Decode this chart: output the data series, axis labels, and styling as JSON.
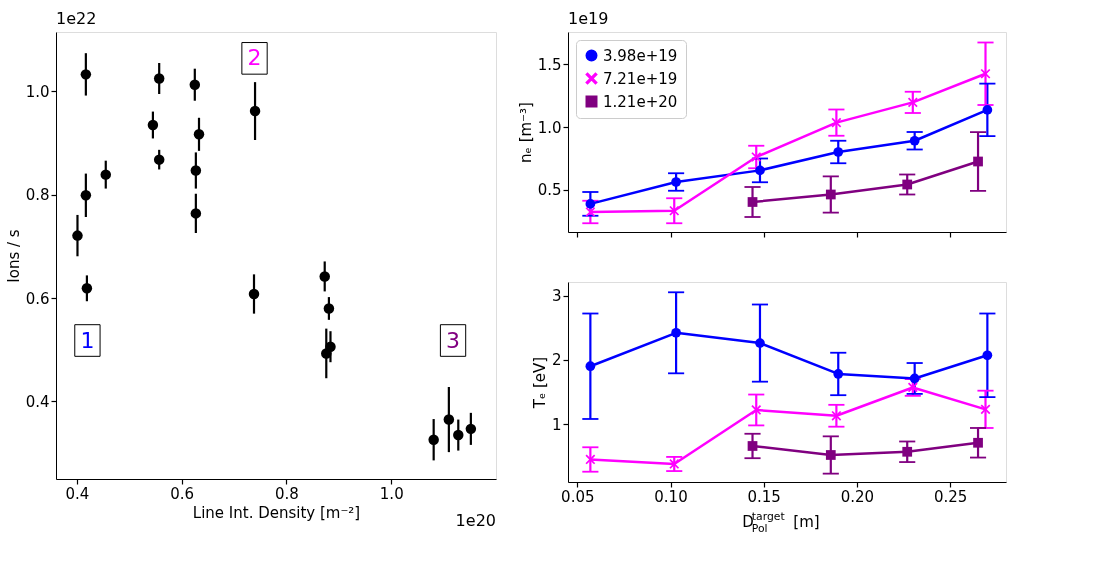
{
  "chart_data": [
    {
      "type": "scatter",
      "xlabel": "Line Int. Density [m⁻²]",
      "ylabel": "Ions / s",
      "xlim": [
        0.36,
        1.2
      ],
      "ylim": [
        0.25,
        1.115
      ],
      "xticks": [
        0.4,
        0.6,
        0.8,
        {
          "value": 1,
          "label": "1.0"
        }
      ],
      "yticks": [
        0.4,
        0.6,
        0.8,
        {
          "value": 1,
          "label": "1.0"
        }
      ],
      "grid": false,
      "legend": false,
      "marker": "circle",
      "series": [
        {
          "color": "#000000",
          "x": [
            0.417,
            0.417,
            0.401,
            0.455,
            0.419,
            0.545,
            0.557,
            0.557,
            0.625,
            0.633,
            0.627,
            0.627,
            0.74,
            0.738,
            0.873,
            0.881,
            0.876,
            0.884,
            1.081,
            1.11,
            1.128,
            1.152
          ],
          "values": [
            1.033,
            0.799,
            0.721,
            0.839,
            0.619,
            0.935,
            1.025,
            0.868,
            1.013,
            0.917,
            0.847,
            0.764,
            0.962,
            0.608,
            0.642,
            0.58,
            0.493,
            0.506,
            0.326,
            0.365,
            0.335,
            0.347
          ],
          "errors": [
            0.041,
            0.042,
            0.04,
            0.027,
            0.025,
            0.026,
            0.03,
            0.019,
            0.031,
            0.032,
            0.035,
            0.038,
            0.056,
            0.038,
            0.029,
            0.022,
            0.048,
            0.03,
            0.04,
            0.063,
            0.03,
            0.031
          ]
        }
      ],
      "annotations": [
        {
          "text": "1",
          "x": 0.42,
          "y": 0.518
        },
        {
          "text": "2",
          "x": 0.739,
          "y": 1.064
        },
        {
          "text": "3",
          "x": 1.118,
          "y": 0.518
        },
        "1e22",
        "1e20"
      ]
    },
    {
      "type": "line",
      "ylabel": "nₑ [m⁻³]",
      "xlim": [
        0.045,
        0.28
      ],
      "ylim": [
        0.16,
        1.76
      ],
      "xticks": [
        0.05,
        0.1,
        0.15,
        0.2,
        0.25
      ],
      "yticks": [
        0.5,
        {
          "value": 1,
          "label": "1.0"
        },
        1.5
      ],
      "tick_labels": "y",
      "legend": "top left",
      "grid": false,
      "series": [
        {
          "name": "3.98e+19",
          "color": "#0000ff",
          "marker": "circle",
          "x": [
            0.057,
            0.103,
            0.148,
            0.19,
            0.231,
            0.27
          ],
          "values": [
            0.385,
            0.56,
            0.653,
            0.8,
            0.89,
            1.137
          ],
          "errors": [
            0.095,
            0.07,
            0.095,
            0.09,
            0.07,
            0.21
          ]
        },
        {
          "name": "7.21e+19",
          "color": "#ff00ff",
          "marker": "cross",
          "x": [
            0.057,
            0.102,
            0.146,
            0.189,
            0.23,
            0.269
          ],
          "values": [
            0.32,
            0.33,
            0.76,
            1.035,
            1.197,
            1.426
          ],
          "errors": [
            0.09,
            0.1,
            0.09,
            0.105,
            0.085,
            0.25
          ]
        },
        {
          "name": "1.21e+20",
          "color": "#800080",
          "marker": "square",
          "x": [
            0.144,
            0.186,
            0.227,
            0.265
          ],
          "values": [
            0.4,
            0.46,
            0.54,
            0.724
          ],
          "errors": [
            0.12,
            0.145,
            0.08,
            0.235
          ]
        }
      ],
      "annotations": [
        "1e19"
      ]
    },
    {
      "type": "line",
      "xlabel": "D$^{target}$$_{Pol}$ [m]",
      "ylabel": "Tₑ [eV]",
      "xlim": [
        0.045,
        0.28
      ],
      "ylim": [
        0.1,
        3.21
      ],
      "xticks": [
        0.05,
        {
          "value": 0.1,
          "label": "0.10"
        },
        0.15,
        {
          "value": 0.2,
          "label": "0.20"
        },
        0.25
      ],
      "yticks": [
        1,
        2,
        3
      ],
      "legend": false,
      "grid": false,
      "series": [
        {
          "color": "#0000ff",
          "marker": "circle",
          "x": [
            0.057,
            0.103,
            0.148,
            0.19,
            0.231,
            0.27
          ],
          "values": [
            1.9,
            2.42,
            2.26,
            1.78,
            1.71,
            2.07
          ],
          "errors": [
            0.82,
            0.63,
            0.6,
            0.33,
            0.24,
            0.65
          ]
        },
        {
          "color": "#ff00ff",
          "marker": "cross",
          "x": [
            0.057,
            0.102,
            0.146,
            0.189,
            0.23,
            0.269
          ],
          "values": [
            0.45,
            0.38,
            1.22,
            1.13,
            1.57,
            1.23
          ],
          "errors": [
            0.19,
            0.11,
            0.24,
            0.17,
            0.13,
            0.29
          ]
        },
        {
          "color": "#800080",
          "marker": "square",
          "x": [
            0.144,
            0.186,
            0.227,
            0.265
          ],
          "values": [
            0.66,
            0.52,
            0.57,
            0.71
          ],
          "errors": [
            0.19,
            0.29,
            0.16,
            0.23
          ]
        }
      ]
    }
  ]
}
